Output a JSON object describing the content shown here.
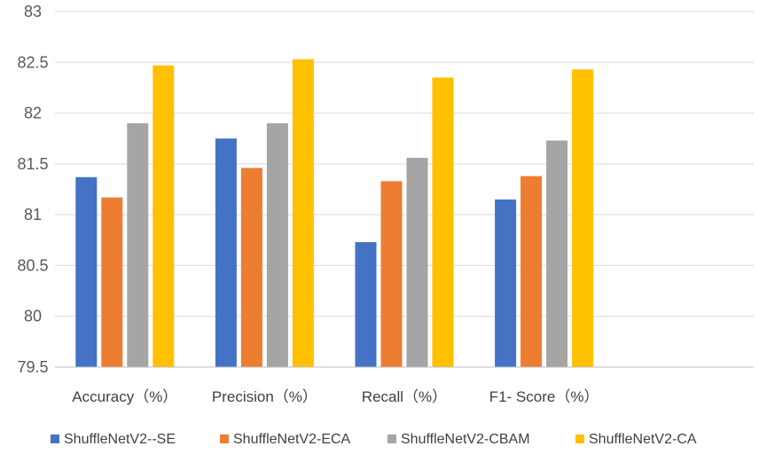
{
  "chart_data": {
    "type": "bar",
    "title": "",
    "xlabel": "",
    "ylabel": "",
    "categories": [
      "Accuracy（%）",
      "Precision（%）",
      "Recall（%）",
      "F1- Score（%）"
    ],
    "series": [
      {
        "name": "ShuffleNetV2--SE",
        "color": "#4472C4",
        "values": [
          81.37,
          81.75,
          80.73,
          81.15
        ]
      },
      {
        "name": "ShuffleNetV2-ECA",
        "color": "#ED7D31",
        "values": [
          81.17,
          81.46,
          81.33,
          81.38
        ]
      },
      {
        "name": "ShuffleNetV2-CBAM",
        "color": "#A5A5A5",
        "values": [
          81.9,
          81.9,
          81.56,
          81.73
        ]
      },
      {
        "name": "ShuffleNetV2-CA",
        "color": "#FFC000",
        "values": [
          82.47,
          82.53,
          82.35,
          82.43
        ]
      }
    ],
    "ylim": [
      79.5,
      83
    ],
    "yticks": [
      "79.5",
      "80",
      "80.5",
      "81",
      "81.5",
      "82",
      "82.5",
      "83"
    ],
    "grid": true,
    "legend": "bottom"
  }
}
